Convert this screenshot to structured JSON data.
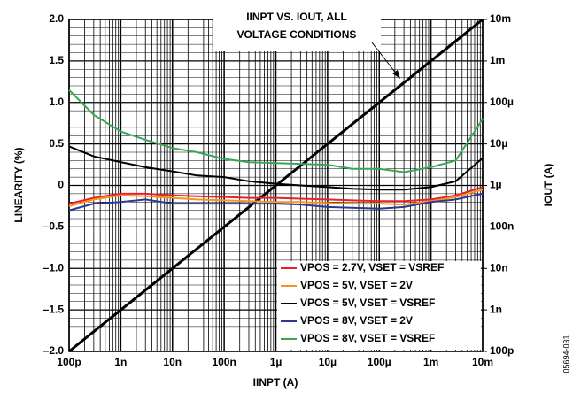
{
  "chart_data": {
    "type": "line",
    "xlabel": "IINPT (A)",
    "ylabel": "LINEARITY (%)",
    "y2label": "IOUT (A)",
    "side_code": "05694-031",
    "annotation": [
      "IINPT VS. IOUT, ALL",
      "VOLTAGE CONDITIONS"
    ],
    "xscale": "log",
    "y2scale": "log",
    "grid": true,
    "legend": "lower right",
    "xlim": [
      1e-10,
      0.01
    ],
    "xticks": [
      {
        "value": 1e-10,
        "label": "100p"
      },
      {
        "value": 1e-09,
        "label": "1n"
      },
      {
        "value": 1e-08,
        "label": "10n"
      },
      {
        "value": 1e-07,
        "label": "100n"
      },
      {
        "value": 1e-06,
        "label": "1µ"
      },
      {
        "value": 1e-05,
        "label": "10µ"
      },
      {
        "value": 0.0001,
        "label": "100µ"
      },
      {
        "value": 0.001,
        "label": "1m"
      },
      {
        "value": 0.01,
        "label": "10m"
      }
    ],
    "ylim": [
      -2,
      2
    ],
    "yticks": [
      {
        "value": -2,
        "label": "–2.0"
      },
      {
        "value": -1.5,
        "label": "–1.5"
      },
      {
        "value": -1,
        "label": "–1.0"
      },
      {
        "value": -0.5,
        "label": "–0.5"
      },
      0,
      0.5,
      {
        "value": 1,
        "label": "1.0"
      },
      1.5,
      {
        "value": 2,
        "label": "2.0"
      }
    ],
    "y2lim": [
      1e-10,
      0.01
    ],
    "y2ticks": [
      {
        "value": 1e-10,
        "label": "100p"
      },
      {
        "value": 1e-09,
        "label": "1n"
      },
      {
        "value": 1e-08,
        "label": "10n"
      },
      {
        "value": 1e-07,
        "label": "100n"
      },
      {
        "value": 1e-06,
        "label": "1µ"
      },
      {
        "value": 1e-05,
        "label": "10µ"
      },
      {
        "value": 0.0001,
        "label": "100µ"
      },
      {
        "value": 0.001,
        "label": "1m"
      },
      {
        "value": 0.01,
        "label": "10m"
      }
    ],
    "x": [
      1e-10,
      3e-10,
      1e-09,
      3e-09,
      1e-08,
      3e-08,
      1e-07,
      3e-07,
      1e-06,
      3e-06,
      1e-05,
      3e-05,
      0.0001,
      0.0003,
      0.001,
      0.003,
      0.01
    ],
    "reference": {
      "x": [
        1e-10,
        0.01
      ],
      "values": [
        1e-10,
        0.01
      ],
      "axis": "y2",
      "color": "#000000"
    },
    "series": [
      {
        "name": "VPOS = 2.7V, VSET = VSREF",
        "color": "#e8202a",
        "values": [
          -0.22,
          -0.15,
          -0.1,
          -0.1,
          -0.12,
          -0.13,
          -0.14,
          -0.15,
          -0.15,
          -0.16,
          -0.17,
          -0.18,
          -0.19,
          -0.19,
          -0.17,
          -0.12,
          -0.02
        ]
      },
      {
        "name": "VPOS = 5V, VSET = 2V",
        "color": "#f7941d",
        "values": [
          -0.25,
          -0.17,
          -0.12,
          -0.13,
          -0.15,
          -0.17,
          -0.18,
          -0.19,
          -0.2,
          -0.2,
          -0.21,
          -0.22,
          -0.22,
          -0.23,
          -0.19,
          -0.14,
          -0.05
        ]
      },
      {
        "name": "VPOS = 5V, VSET = VSREF",
        "color": "#000000",
        "values": [
          0.47,
          0.35,
          0.28,
          0.22,
          0.17,
          0.12,
          0.1,
          0.05,
          0.02,
          0,
          -0.02,
          -0.04,
          -0.05,
          -0.05,
          -0.02,
          0.05,
          0.33
        ]
      },
      {
        "name": "VPOS = 8V, VSET = 2V",
        "color": "#2b3990",
        "values": [
          -0.3,
          -0.22,
          -0.2,
          -0.17,
          -0.22,
          -0.22,
          -0.22,
          -0.22,
          -0.22,
          -0.23,
          -0.26,
          -0.27,
          -0.28,
          -0.26,
          -0.2,
          -0.17,
          -0.1
        ]
      },
      {
        "name": "VPOS = 8V, VSET = VSREF",
        "color": "#3aa655",
        "values": [
          1.15,
          0.85,
          0.65,
          0.55,
          0.45,
          0.4,
          0.32,
          0.28,
          0.27,
          0.26,
          0.25,
          0.2,
          0.2,
          0.16,
          0.22,
          0.3,
          0.8
        ]
      }
    ]
  }
}
